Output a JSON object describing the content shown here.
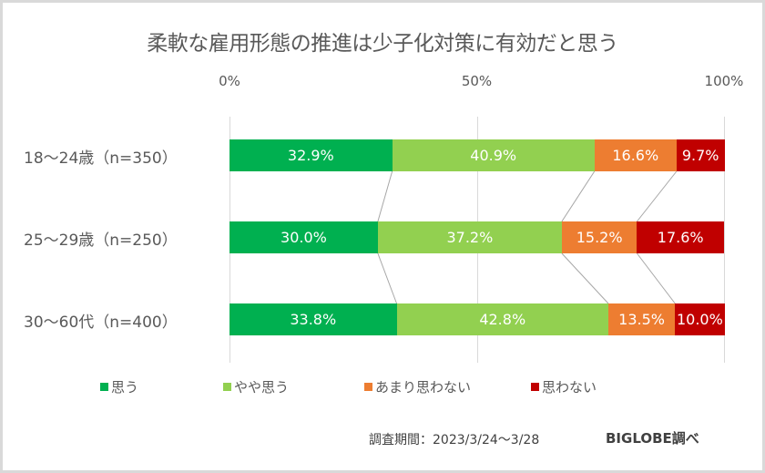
{
  "chart_data": {
    "type": "bar",
    "orientation": "horizontal",
    "stacked": "percent",
    "title": "柔軟な雇用形態の推進は少子化対策に有効だと思う",
    "xlim": [
      0,
      100
    ],
    "x_ticks": [
      "0%",
      "50%",
      "100%"
    ],
    "grid": true,
    "categories": [
      "18～24歳（n=350）",
      "25～29歳（n=250）",
      "30～60代（n=400）"
    ],
    "series": [
      {
        "name": "思う",
        "color": "#00b050",
        "values": [
          32.9,
          30.0,
          33.8
        ],
        "labels": [
          "32.9%",
          "30.0%",
          "33.8%"
        ]
      },
      {
        "name": "やや思う",
        "color": "#92d050",
        "values": [
          40.9,
          37.2,
          42.8
        ],
        "labels": [
          "40.9%",
          "37.2%",
          "42.8%"
        ]
      },
      {
        "name": "あまり思わない",
        "color": "#ed7d31",
        "values": [
          16.6,
          15.2,
          13.5
        ],
        "labels": [
          "16.6%",
          "15.2%",
          "13.5%"
        ]
      },
      {
        "name": "思わない",
        "color": "#c00000",
        "values": [
          9.7,
          17.6,
          10.0
        ],
        "labels": [
          "9.7%",
          "17.6%",
          "10.0%"
        ]
      }
    ],
    "legend_position": "bottom"
  },
  "footer": {
    "period": "調査期間：2023/3/24～3/28",
    "brand": "BIGLOBE調べ"
  }
}
